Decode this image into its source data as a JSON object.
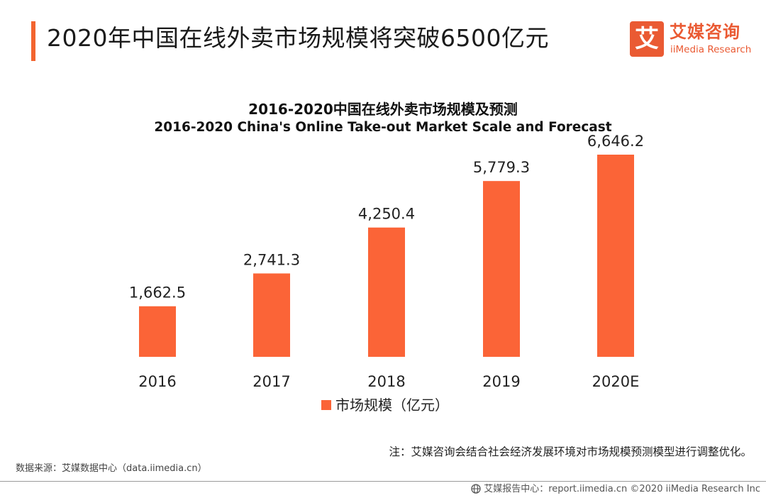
{
  "header": {
    "title": "2020年中国在线外卖市场规模将突破6500亿元",
    "accent_color": "#f3642f"
  },
  "logo": {
    "mark": "艾",
    "cn": "艾媒咨询",
    "en": "iiMedia Research",
    "color": "#ea5a33"
  },
  "chart_data": {
    "type": "bar",
    "title": "2016-2020中国在线外卖市场规模及预测",
    "subtitle": "2016-2020 China's Online Take-out Market Scale and Forecast",
    "categories": [
      "2016",
      "2017",
      "2018",
      "2019",
      "2020E"
    ],
    "series": [
      {
        "name": "市场规模（亿元）",
        "values": [
          1662.5,
          2741.3,
          4250.4,
          5779.3,
          6646.2
        ],
        "value_labels": [
          "1,662.5",
          "2,741.3",
          "4,250.4",
          "5,779.3",
          "6,646.2"
        ],
        "color": "#fb6437"
      }
    ],
    "xlabel": "",
    "ylabel": "",
    "ylim": [
      0,
      6646.2
    ],
    "grid": false,
    "legend": "bottom-center"
  },
  "legend": {
    "label": "市场规模（亿元）"
  },
  "note": "注：艾媒咨询会结合社会经济发展环境对市场规模预测模型进行调整优化。",
  "source": "数据来源：艾媒数据中心（data.iimedia.cn）",
  "footer": {
    "text": "艾媒报告中心：report.iimedia.cn ©2020 iiMedia Research Inc"
  }
}
